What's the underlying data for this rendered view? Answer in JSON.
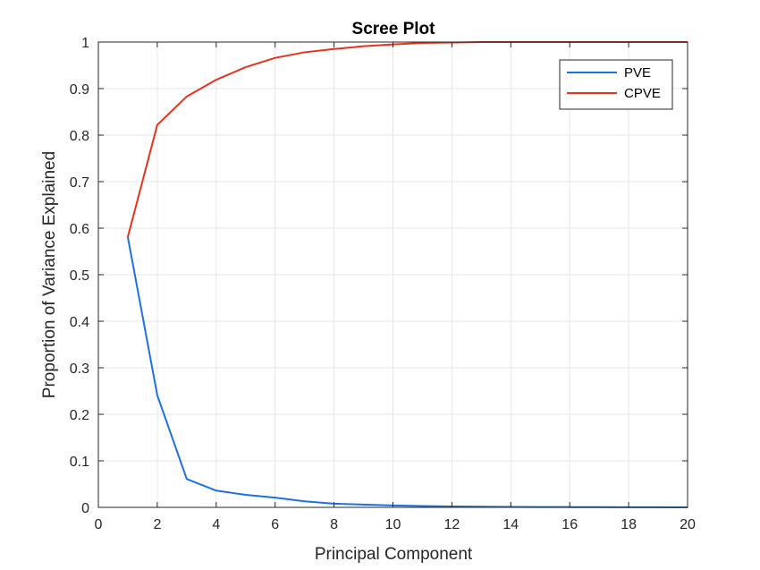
{
  "chart_data": {
    "type": "line",
    "title": "Scree Plot",
    "xlabel": "Principal Component",
    "ylabel": "Proportion of Variance Explained",
    "xlim": [
      0,
      20
    ],
    "ylim": [
      0,
      1
    ],
    "xticks": [
      0,
      2,
      4,
      6,
      8,
      10,
      12,
      14,
      16,
      18,
      20
    ],
    "yticks": [
      0,
      0.1,
      0.2,
      0.3,
      0.4,
      0.5,
      0.6,
      0.7,
      0.8,
      0.9,
      1
    ],
    "grid": true,
    "legend_position": "top-right",
    "x": [
      1,
      2,
      3,
      4,
      5,
      6,
      7,
      8,
      9,
      10,
      11,
      12,
      13,
      14,
      15,
      16,
      17,
      18,
      19,
      20
    ],
    "series": [
      {
        "name": "PVE",
        "color": "#1f6fe5",
        "values": [
          0.581,
          0.241,
          0.061,
          0.036,
          0.027,
          0.021,
          0.013,
          0.008,
          0.006,
          0.004,
          0.003,
          0.002,
          0.0015,
          0.001,
          0.0008,
          0.0006,
          0.0004,
          0.0003,
          0.0002,
          0.0001
        ]
      },
      {
        "name": "CPVE",
        "color": "#e8331c",
        "values": [
          0.581,
          0.822,
          0.883,
          0.919,
          0.946,
          0.966,
          0.978,
          0.985,
          0.991,
          0.995,
          0.998,
          0.999,
          1.0,
          1.0,
          1.0,
          1.0,
          1.0,
          1.0,
          1.0,
          1.0
        ]
      }
    ]
  }
}
